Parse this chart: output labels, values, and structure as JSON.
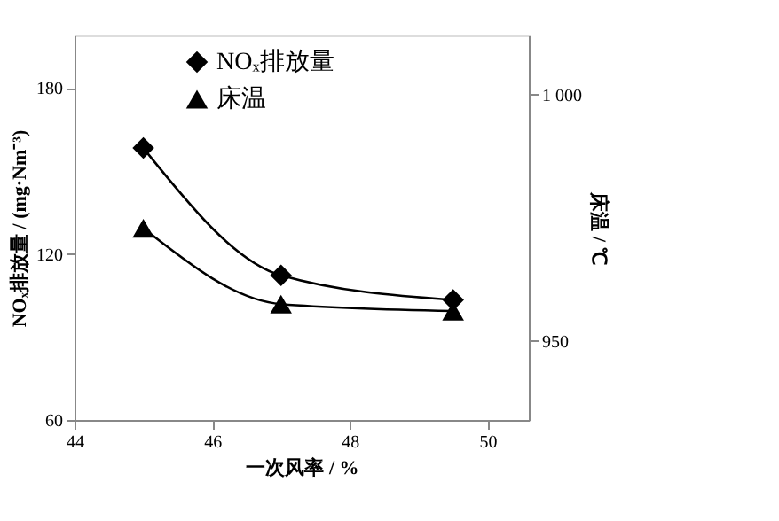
{
  "chart_data": {
    "type": "line",
    "xlabel": "一次风率 / %",
    "ylabel": "NOₓ排放量 / (mg·Nm⁻³)",
    "y2label": "床温 / ℃",
    "x": [
      45,
      47,
      49.5
    ],
    "series": [
      {
        "name": "NOₓ排放量",
        "color": "#000000",
        "marker": "diamond",
        "values": [
          158.3,
          112.3,
          103.4
        ]
      },
      {
        "name": "床温",
        "color": "#000000",
        "marker": "triangle",
        "axis": "y2",
        "values": [
          972.9,
          957.5,
          956.1
        ]
      }
    ],
    "xlim": [
      44,
      50.6
    ],
    "xticks": [
      44,
      46,
      48,
      50
    ],
    "ylim": [
      60,
      199
    ],
    "yticks": [
      60,
      120,
      180
    ],
    "y2lim": [
      934,
      1012
    ],
    "y2ticks": [
      950,
      {
        "value": 1000,
        "label": "1 000"
      }
    ],
    "grid": false,
    "legend": "top",
    "line_style": "solid"
  }
}
